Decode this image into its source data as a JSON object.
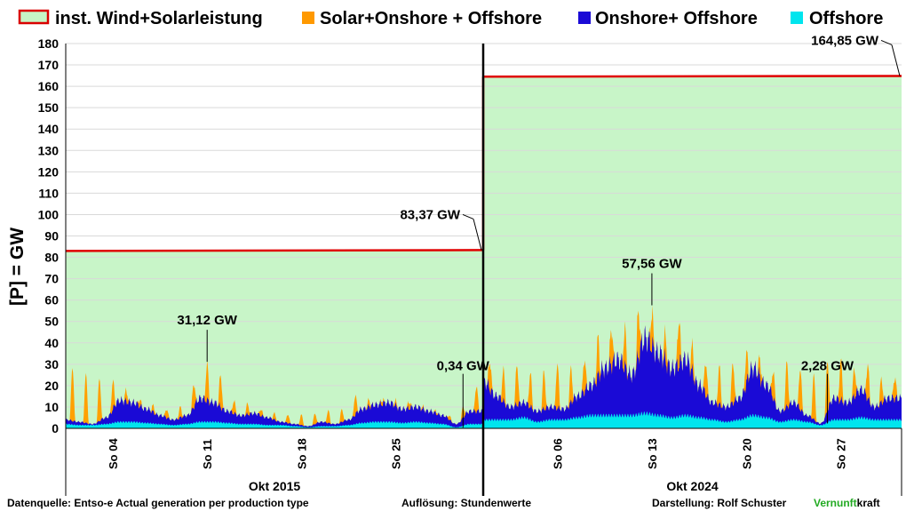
{
  "chart_data": {
    "type": "area",
    "title": "",
    "ylabel": "[P] = GW",
    "ylim": [
      0,
      180
    ],
    "yticks": [
      0,
      10,
      20,
      30,
      40,
      50,
      60,
      70,
      80,
      90,
      100,
      110,
      120,
      130,
      140,
      150,
      160,
      170,
      180
    ],
    "grid": true,
    "legend_position": "top",
    "legend": [
      {
        "name": "inst.  Wind+Solarleistung",
        "color": "#d90000",
        "fill": "#c6f5c6",
        "kind": "outline"
      },
      {
        "name": "Solar+Onshore + Offshore",
        "color": "#ff9900",
        "kind": "solid"
      },
      {
        "name": "Onshore+ Offshore",
        "color": "#1a0ad6",
        "kind": "solid"
      },
      {
        "name": "Offshore",
        "color": "#00e5ee",
        "kind": "solid"
      }
    ],
    "colors": {
      "installed_line": "#e00000",
      "installed_fill": "#c8f5c8",
      "solar": "#ffa000",
      "onshore": "#1a0ad6",
      "offshore": "#00e5ee",
      "divider": "#000000"
    },
    "periods": [
      {
        "name": "Okt 2015",
        "installed_gw": [
          [
            1,
            83.0
          ],
          [
            31,
            83.4
          ]
        ],
        "ticks": [
          "So 04",
          "So 11",
          "So 18",
          "So 25"
        ],
        "tick_days": [
          4,
          11,
          18,
          25
        ],
        "solar_peaks_gw": [
          29,
          26,
          22,
          18,
          18,
          15,
          12,
          10,
          9,
          17,
          31.12,
          27,
          14,
          11,
          10,
          8,
          7,
          7,
          6,
          9,
          8,
          13,
          12,
          13,
          14,
          12,
          11,
          9,
          8,
          7,
          20
        ],
        "onshore_daily_gw": [
          4,
          3,
          2,
          5,
          13,
          12,
          9,
          6,
          4,
          6,
          14,
          12,
          8,
          6,
          7,
          5,
          3,
          2,
          1,
          3,
          2,
          4,
          9,
          11,
          12,
          9,
          10,
          8,
          6,
          2,
          8
        ],
        "offshore_daily_gw": [
          2,
          1.5,
          1.5,
          2,
          3,
          3,
          2.5,
          2,
          1.5,
          2,
          3,
          3,
          2.5,
          2,
          2,
          1.5,
          1.5,
          1,
          0.5,
          1,
          1,
          1.5,
          2.5,
          3,
          3,
          2.5,
          3,
          2.5,
          2,
          0.5,
          2
        ],
        "annotations": [
          {
            "text": "31,12 GW",
            "day": 11,
            "value": 31.12
          },
          {
            "text": "0,34 GW",
            "day": 30,
            "value": 0.34
          },
          {
            "text": "83,37 GW",
            "day": 31,
            "value": 83.37
          }
        ]
      },
      {
        "name": "Okt 2024",
        "installed_gw": [
          [
            1,
            164.5
          ],
          [
            31,
            164.85
          ]
        ],
        "ticks": [
          "So 06",
          "So 13",
          "So 20",
          "So 27"
        ],
        "tick_days": [
          6,
          13,
          20,
          27
        ],
        "solar_peaks_gw": [
          35,
          30,
          29,
          28,
          26,
          31,
          25,
          30,
          38,
          45,
          50,
          47,
          57.56,
          47,
          49,
          44,
          35,
          30,
          29,
          28,
          36,
          33,
          29,
          31,
          27,
          26,
          33,
          25,
          34,
          21,
          24
        ],
        "onshore_daily_gw": [
          22,
          15,
          10,
          12,
          8,
          10,
          9,
          15,
          20,
          28,
          32,
          25,
          42,
          35,
          28,
          32,
          20,
          12,
          10,
          14,
          28,
          20,
          8,
          12,
          6,
          2.28,
          14,
          12,
          18,
          10,
          14
        ],
        "offshore_daily_gw": [
          4,
          4,
          4,
          5,
          3,
          4,
          4,
          5,
          6,
          6,
          6,
          6,
          7,
          6,
          5,
          6,
          5,
          4,
          3,
          4,
          6,
          5,
          3,
          4,
          3,
          1.5,
          4,
          4,
          5,
          4,
          4
        ],
        "annotations": [
          {
            "text": "57,56 GW",
            "day": 13,
            "value": 57.56
          },
          {
            "text": "2,28 GW",
            "day": 26,
            "value": 2.28
          },
          {
            "text": "164,85 GW",
            "day": 31,
            "value": 164.85
          }
        ]
      }
    ]
  },
  "footer": {
    "source": "Datenquelle: Entso-e  Actual generation per production type",
    "resolution": "Auflösung: Stundenwerte",
    "author": "Darstellung:  Rolf Schuster",
    "brand_green": "Vernunft",
    "brand_black": "kraft",
    "brand_color": "#22aa22"
  }
}
